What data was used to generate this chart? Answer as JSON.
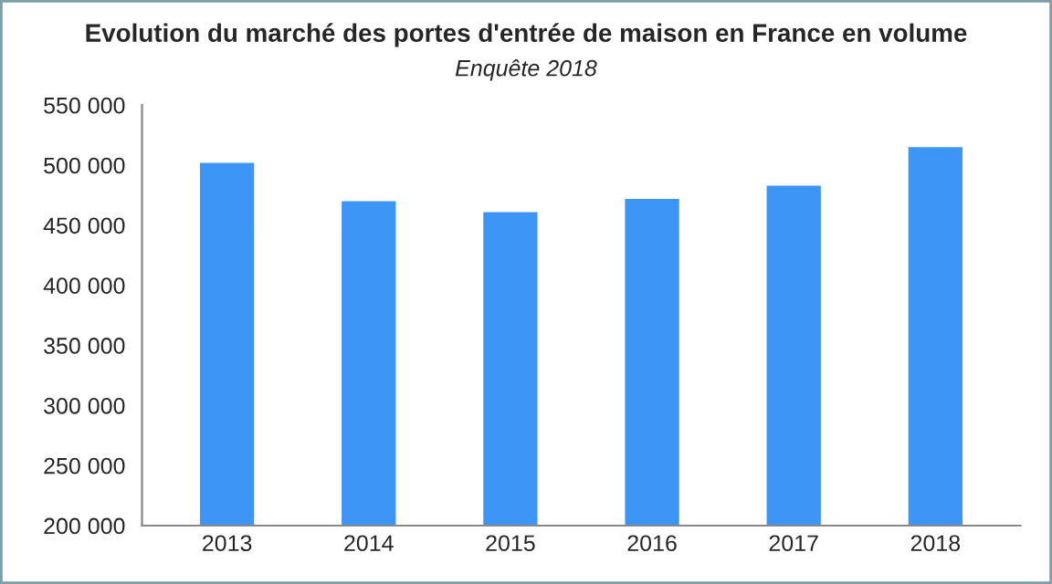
{
  "chart_data": {
    "type": "bar",
    "title": "Evolution du marché des portes d'entrée de maison en France en volume",
    "subtitle": "Enquête 2018",
    "categories": [
      "2013",
      "2014",
      "2015",
      "2016",
      "2017",
      "2018"
    ],
    "values": [
      503000,
      471000,
      462000,
      473000,
      484000,
      516000
    ],
    "color": "#3d95f5",
    "ylim": [
      200000,
      550000
    ],
    "yticks": [
      {
        "value": 200000,
        "label": "200 000"
      },
      {
        "value": 250000,
        "label": "250 000"
      },
      {
        "value": 300000,
        "label": "300 000"
      },
      {
        "value": 350000,
        "label": "350 000"
      },
      {
        "value": 400000,
        "label": "400 000"
      },
      {
        "value": 450000,
        "label": "450 000"
      },
      {
        "value": 500000,
        "label": "500 000"
      },
      {
        "value": 550000,
        "label": "550 000"
      }
    ],
    "grid": false
  }
}
